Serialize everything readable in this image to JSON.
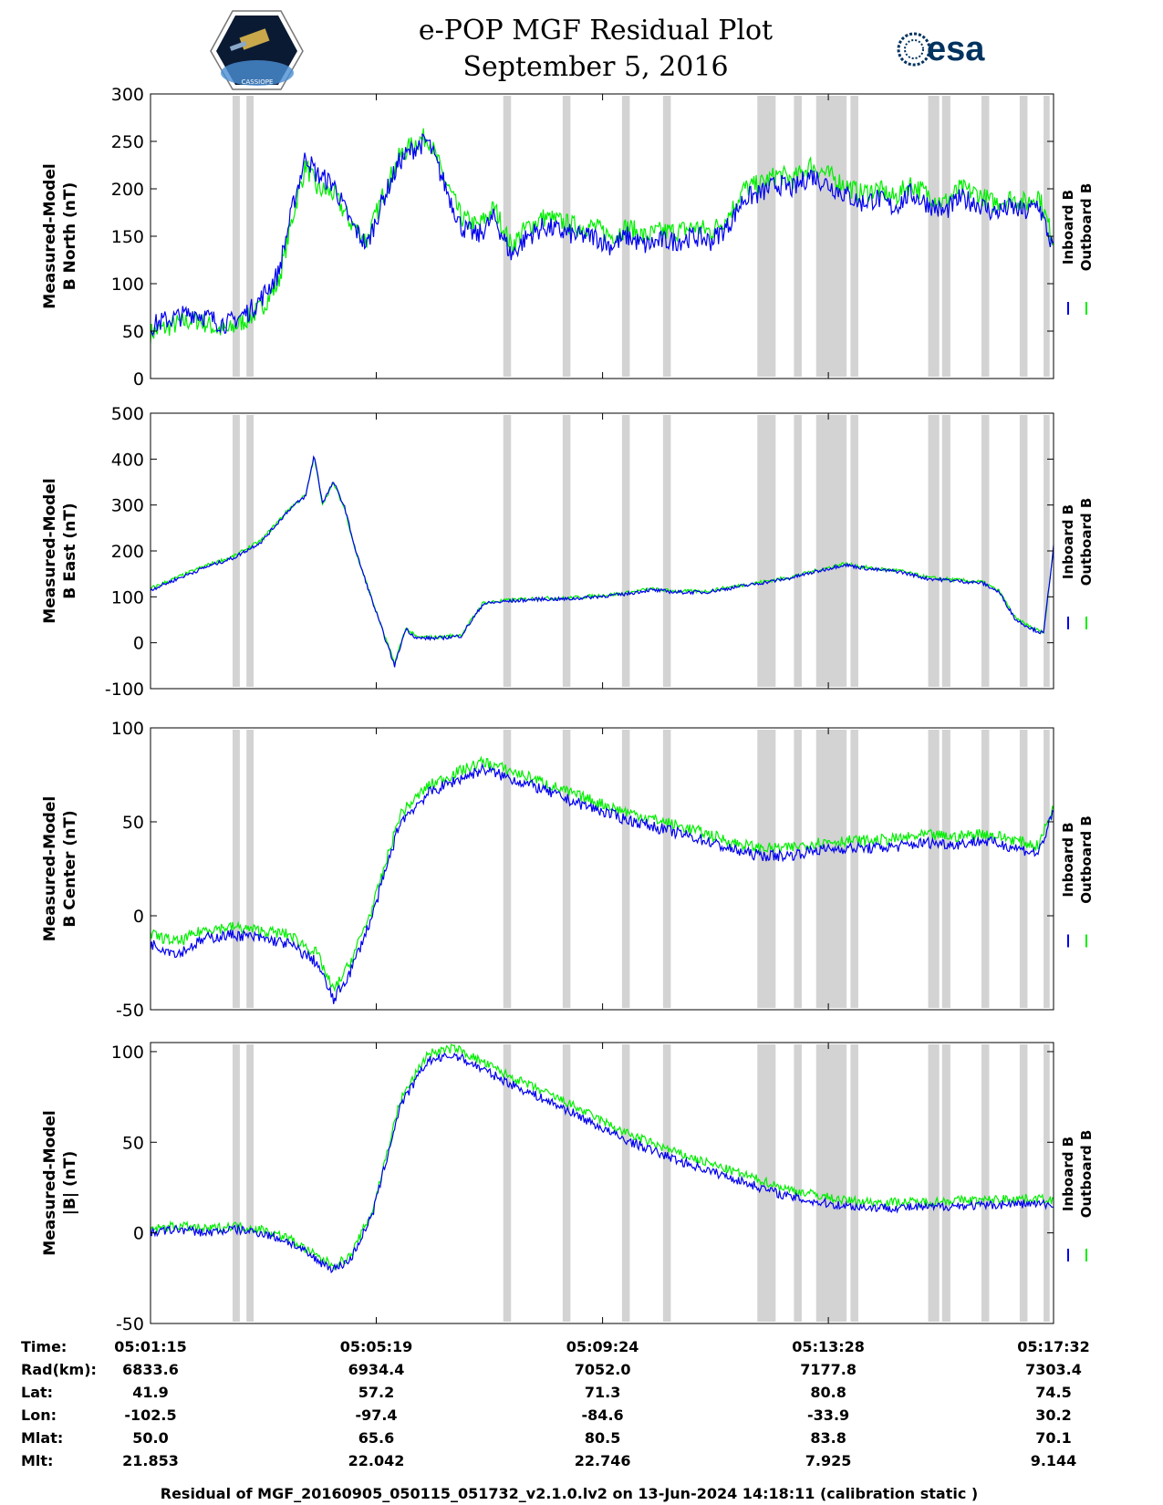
{
  "header": {
    "title_line1": "e-POP MGF Residual Plot",
    "title_line2": "September 5, 2016",
    "esa_label": "esa",
    "mission_badge_text": "CASSIOPE"
  },
  "colors": {
    "inboard": "#0000ee",
    "outboard": "#00ee00",
    "gap_shading": "#d3d3d3"
  },
  "chart_data": [
    {
      "type": "line",
      "id": "b-north",
      "ylabel": [
        "Measured-Model",
        "B North (nT)"
      ],
      "ylim": [
        0,
        300
      ],
      "yticks": [
        0,
        50,
        100,
        150,
        200,
        250,
        300
      ],
      "legend": [
        "Inboard B",
        "Outboard B"
      ],
      "series": [
        {
          "name": "Inboard B",
          "x": [
            0,
            0.2,
            0.5,
            0.8,
            1.0,
            1.2,
            1.4,
            1.6,
            1.8,
            2.0,
            2.3,
            2.6,
            2.8,
            3.0,
            3.3,
            3.6,
            3.9,
            4.2,
            4.5,
            4.8,
            5.0,
            5.3,
            5.6,
            5.9,
            6.2,
            6.5,
            6.8,
            7.1,
            7.4,
            7.7,
            8.0,
            8.3,
            8.6,
            8.9,
            9.2,
            9.5,
            9.8,
            10.1,
            10.4,
            10.7,
            11.0,
            11.3,
            11.6,
            11.9,
            12.2,
            12.5,
            12.8,
            13.1,
            13.4,
            13.7,
            14.0,
            14.3,
            14.6,
            14.9,
            15.2,
            15.5,
            15.8,
            16.0,
            16.28
          ],
          "values": [
            55,
            60,
            65,
            70,
            65,
            60,
            58,
            65,
            72,
            85,
            110,
            190,
            235,
            215,
            205,
            165,
            140,
            190,
            230,
            245,
            250,
            205,
            160,
            150,
            170,
            130,
            150,
            160,
            155,
            150,
            150,
            140,
            150,
            140,
            145,
            145,
            150,
            145,
            160,
            190,
            195,
            205,
            200,
            215,
            205,
            195,
            185,
            190,
            180,
            195,
            185,
            175,
            190,
            185,
            175,
            180,
            175,
            185,
            135
          ]
        },
        {
          "name": "Outboard B",
          "x": [
            0,
            0.2,
            0.5,
            0.8,
            1.0,
            1.2,
            1.4,
            1.6,
            1.8,
            2.0,
            2.3,
            2.6,
            2.8,
            3.0,
            3.3,
            3.6,
            3.9,
            4.2,
            4.5,
            4.8,
            5.0,
            5.3,
            5.6,
            5.9,
            6.2,
            6.5,
            6.8,
            7.1,
            7.4,
            7.7,
            8.0,
            8.3,
            8.6,
            8.9,
            9.2,
            9.5,
            9.8,
            10.1,
            10.4,
            10.7,
            11.0,
            11.3,
            11.6,
            11.9,
            12.2,
            12.5,
            12.8,
            13.1,
            13.4,
            13.7,
            14.0,
            14.3,
            14.6,
            14.9,
            15.2,
            15.5,
            15.8,
            16.0,
            16.28
          ],
          "values": [
            48,
            52,
            58,
            62,
            58,
            52,
            50,
            58,
            65,
            75,
            100,
            180,
            225,
            200,
            195,
            165,
            145,
            195,
            235,
            250,
            255,
            210,
            170,
            160,
            180,
            140,
            160,
            170,
            165,
            160,
            160,
            150,
            160,
            150,
            155,
            155,
            160,
            155,
            170,
            200,
            205,
            215,
            210,
            225,
            215,
            205,
            195,
            200,
            190,
            205,
            195,
            185,
            200,
            195,
            185,
            190,
            185,
            195,
            145
          ]
        }
      ]
    },
    {
      "type": "line",
      "id": "b-east",
      "ylabel": [
        "Measured-Model",
        "B East (nT)"
      ],
      "ylim": [
        -100,
        500
      ],
      "yticks": [
        -100,
        0,
        100,
        200,
        300,
        400,
        500
      ],
      "legend": [
        "Inboard B",
        "Outboard B"
      ],
      "series": [
        {
          "name": "Inboard B",
          "x": [
            0,
            0.5,
            1.0,
            1.5,
            2.0,
            2.5,
            2.8,
            2.95,
            3.1,
            3.3,
            3.5,
            3.7,
            4.0,
            4.2,
            4.4,
            4.6,
            4.8,
            5.2,
            5.6,
            6.0,
            6.4,
            7.0,
            7.5,
            8.0,
            8.5,
            9.0,
            9.5,
            10.0,
            10.5,
            11.0,
            11.5,
            12.0,
            12.5,
            13.0,
            13.5,
            14.0,
            14.5,
            15.0,
            15.3,
            15.6,
            15.9,
            16.1,
            16.28
          ],
          "values": [
            115,
            140,
            165,
            185,
            220,
            290,
            320,
            410,
            305,
            350,
            295,
            200,
            90,
            20,
            -50,
            30,
            10,
            10,
            15,
            85,
            90,
            95,
            95,
            100,
            105,
            115,
            110,
            110,
            120,
            130,
            140,
            155,
            170,
            160,
            155,
            140,
            135,
            130,
            110,
            50,
            30,
            20,
            210
          ]
        },
        {
          "name": "Outboard B",
          "x": [
            0,
            0.5,
            1.0,
            1.5,
            2.0,
            2.5,
            2.8,
            2.95,
            3.1,
            3.3,
            3.5,
            3.7,
            4.0,
            4.2,
            4.4,
            4.6,
            4.8,
            5.2,
            5.6,
            6.0,
            6.4,
            7.0,
            7.5,
            8.0,
            8.5,
            9.0,
            9.5,
            10.0,
            10.5,
            11.0,
            11.5,
            12.0,
            12.5,
            13.0,
            13.5,
            14.0,
            14.5,
            15.0,
            15.3,
            15.6,
            15.9,
            16.1,
            16.28
          ],
          "values": [
            118,
            143,
            168,
            188,
            223,
            292,
            322,
            405,
            303,
            347,
            292,
            198,
            92,
            22,
            -45,
            32,
            12,
            12,
            17,
            87,
            92,
            97,
            97,
            102,
            107,
            117,
            112,
            112,
            122,
            132,
            142,
            157,
            172,
            162,
            157,
            142,
            137,
            132,
            112,
            52,
            32,
            22,
            205
          ]
        }
      ]
    },
    {
      "type": "line",
      "id": "b-center",
      "ylabel": [
        "Measured-Model",
        "B Center (nT)"
      ],
      "ylim": [
        -50,
        100
      ],
      "yticks": [
        -50,
        0,
        50,
        100
      ],
      "legend": [
        "Inboard B",
        "Outboard B"
      ],
      "series": [
        {
          "name": "Inboard B",
          "x": [
            0,
            0.5,
            1.0,
            1.5,
            2.0,
            2.5,
            3.0,
            3.3,
            3.6,
            4.0,
            4.5,
            5.0,
            5.5,
            6.0,
            6.3,
            6.6,
            7.0,
            7.5,
            8.0,
            8.5,
            9.0,
            9.5,
            10.0,
            10.5,
            11.0,
            11.5,
            12.0,
            12.5,
            13.0,
            13.5,
            14.0,
            14.5,
            15.0,
            15.5,
            16.0,
            16.28
          ],
          "values": [
            -15,
            -20,
            -12,
            -10,
            -12,
            -15,
            -25,
            -45,
            -30,
            0,
            50,
            65,
            72,
            78,
            75,
            72,
            68,
            62,
            57,
            52,
            48,
            44,
            40,
            35,
            32,
            32,
            35,
            36,
            36,
            37,
            39,
            38,
            40,
            37,
            33,
            55
          ]
        },
        {
          "name": "Outboard B",
          "x": [
            0,
            0.5,
            1.0,
            1.5,
            2.0,
            2.5,
            3.0,
            3.3,
            3.6,
            4.0,
            4.5,
            5.0,
            5.5,
            6.0,
            6.3,
            6.6,
            7.0,
            7.5,
            8.0,
            8.5,
            9.0,
            9.5,
            10.0,
            10.5,
            11.0,
            11.5,
            12.0,
            12.5,
            13.0,
            13.5,
            14.0,
            14.5,
            15.0,
            15.5,
            16.0,
            16.28
          ],
          "values": [
            -10,
            -14,
            -7,
            -6,
            -8,
            -10,
            -20,
            -40,
            -25,
            4,
            54,
            69,
            76,
            82,
            79,
            76,
            72,
            66,
            61,
            56,
            52,
            48,
            44,
            39,
            36,
            36,
            39,
            40,
            40,
            41,
            43,
            42,
            44,
            41,
            37,
            58
          ]
        }
      ]
    },
    {
      "type": "line",
      "id": "b-magnitude",
      "ylabel": [
        "Measured-Model",
        "|B| (nT)"
      ],
      "ylim": [
        -50,
        105
      ],
      "yticks": [
        -50,
        0,
        50,
        100
      ],
      "legend": [
        "Inboard B",
        "Outboard B"
      ],
      "series": [
        {
          "name": "Inboard B",
          "x": [
            0,
            0.5,
            1.0,
            1.5,
            2.0,
            2.5,
            3.0,
            3.3,
            3.6,
            4.0,
            4.5,
            5.0,
            5.5,
            6.0,
            6.5,
            7.0,
            7.5,
            8.0,
            8.5,
            9.0,
            9.5,
            10.0,
            10.5,
            11.0,
            11.5,
            12.0,
            12.5,
            13.0,
            13.5,
            14.0,
            14.5,
            15.0,
            15.5,
            16.0,
            16.28
          ],
          "values": [
            0,
            2,
            0,
            2,
            0,
            -5,
            -15,
            -20,
            -15,
            10,
            70,
            95,
            98,
            90,
            82,
            75,
            68,
            60,
            52,
            46,
            40,
            35,
            30,
            25,
            20,
            17,
            15,
            14,
            14,
            14,
            15,
            15,
            16,
            16,
            15
          ]
        },
        {
          "name": "Outboard B",
          "x": [
            0,
            0.5,
            1.0,
            1.5,
            2.0,
            2.5,
            3.0,
            3.3,
            3.6,
            4.0,
            4.5,
            5.0,
            5.5,
            6.0,
            6.5,
            7.0,
            7.5,
            8.0,
            8.5,
            9.0,
            9.5,
            10.0,
            10.5,
            11.0,
            11.5,
            12.0,
            12.5,
            13.0,
            13.5,
            14.0,
            14.5,
            15.0,
            15.5,
            16.0,
            16.28
          ],
          "values": [
            2,
            4,
            2,
            4,
            2,
            -3,
            -13,
            -18,
            -13,
            12,
            73,
            99,
            102,
            94,
            86,
            79,
            72,
            64,
            56,
            50,
            44,
            39,
            34,
            29,
            24,
            21,
            18,
            17,
            17,
            17,
            18,
            18,
            19,
            19,
            18
          ]
        }
      ]
    }
  ],
  "x_axis": {
    "range_minutes": [
      0,
      16.28
    ],
    "tick_minutes": [
      0,
      4.07,
      8.15,
      12.22,
      16.28
    ],
    "gap_intervals_minutes": [
      [
        1.48,
        1.61
      ],
      [
        1.73,
        1.86
      ],
      [
        6.36,
        6.5
      ],
      [
        7.43,
        7.57
      ],
      [
        8.5,
        8.64
      ],
      [
        9.24,
        9.38
      ],
      [
        10.94,
        11.27
      ],
      [
        11.6,
        11.74
      ],
      [
        12.0,
        12.55
      ],
      [
        12.62,
        12.76
      ],
      [
        14.02,
        14.22
      ],
      [
        14.27,
        14.42
      ],
      [
        14.98,
        15.12
      ],
      [
        15.67,
        15.81
      ],
      [
        16.1,
        16.21
      ]
    ]
  },
  "ephemeris": {
    "labels": [
      "Time:",
      "Rad(km):",
      "Lat:",
      "Lon:",
      "Mlat:",
      "Mlt:"
    ],
    "columns": [
      [
        "05:01:15",
        "6833.6",
        "41.9",
        "-102.5",
        "50.0",
        "21.853"
      ],
      [
        "05:05:19",
        "6934.4",
        "57.2",
        "-97.4",
        "65.6",
        "22.042"
      ],
      [
        "05:09:24",
        "7052.0",
        "71.3",
        "-84.6",
        "80.5",
        "22.746"
      ],
      [
        "05:13:28",
        "7177.8",
        "80.8",
        "-33.9",
        "83.8",
        "7.925"
      ],
      [
        "05:17:32",
        "7303.4",
        "74.5",
        "30.2",
        "70.1",
        "9.144"
      ]
    ]
  },
  "footer": {
    "text": "Residual of MGF_20160905_050115_051732_v2.1.0.lv2 on 13-Jun-2024 14:18:11 (calibration static )"
  }
}
